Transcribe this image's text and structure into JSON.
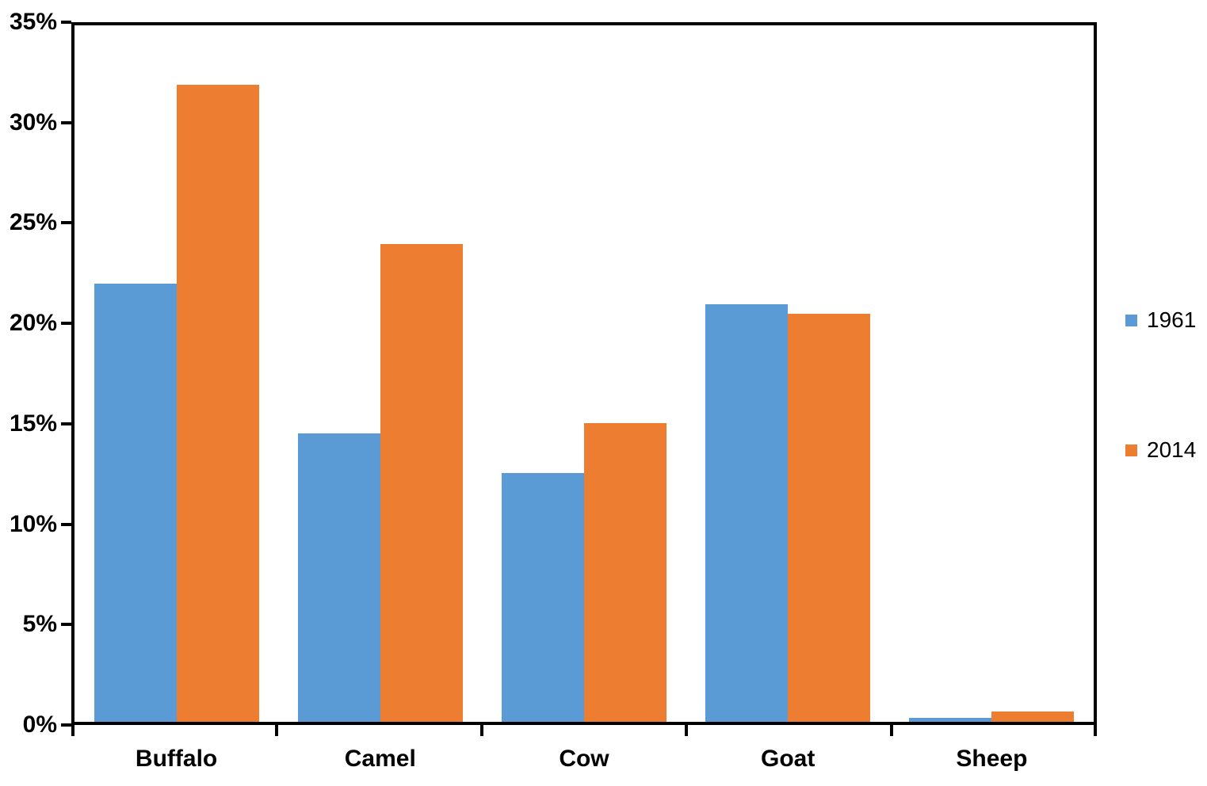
{
  "chart_data": {
    "type": "bar",
    "title": "",
    "categories": [
      "Buffalo",
      "Camel",
      "Cow",
      "Goat",
      "Sheep"
    ],
    "series": [
      {
        "name": "1961",
        "color": "#5B9BD5",
        "values": [
          22,
          14.5,
          12.5,
          21,
          0.2
        ]
      },
      {
        "name": "2014",
        "color": "#ED7D31",
        "values": [
          32,
          24,
          15,
          20.5,
          0.5
        ]
      }
    ],
    "y_axis": {
      "min": 0,
      "max": 35,
      "step": 5,
      "tick_labels": [
        "0%",
        "5%",
        "10%",
        "15%",
        "20%",
        "25%",
        "30%",
        "35%"
      ],
      "format": "percent"
    },
    "x_axis": {
      "tick_labels": [
        "Buffalo",
        "Camel",
        "Cow",
        "Goat",
        "Sheep"
      ]
    },
    "legend": {
      "position": "right",
      "entries": [
        "1961",
        "2014"
      ]
    },
    "grid": false,
    "axis_color": "#000000",
    "text_color": "#000000",
    "background": "#FFFFFF"
  }
}
